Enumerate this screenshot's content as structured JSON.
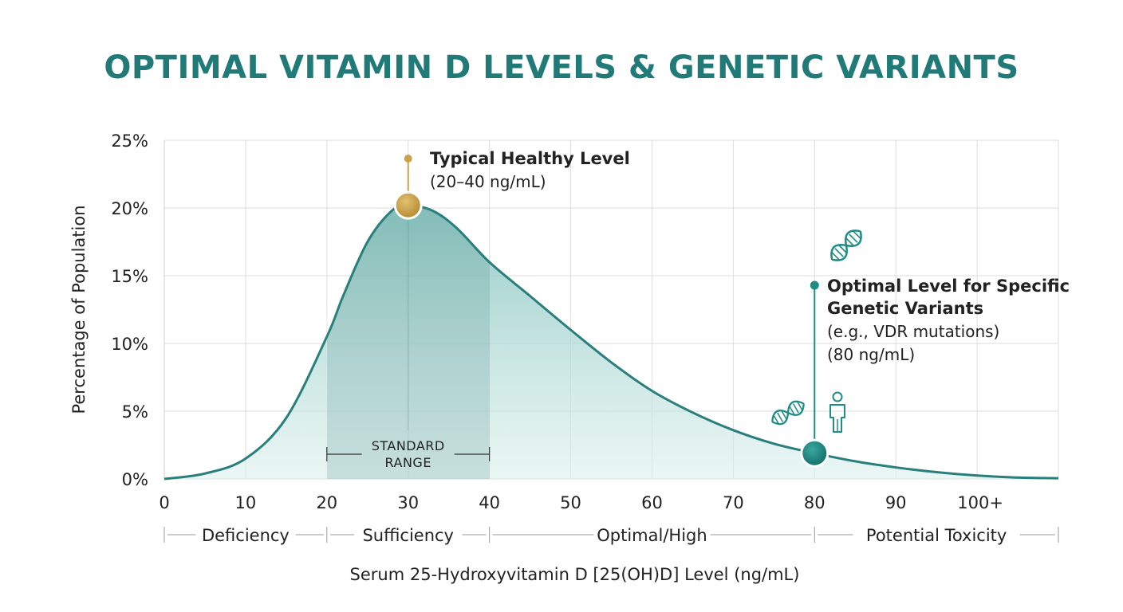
{
  "colors": {
    "title": "#1f7a78",
    "curve": "#2a7f7c",
    "fill": "#8fc9c4",
    "gold": "#c9a24a",
    "teal_marker": "#1f8c86",
    "grid": "#dddddd",
    "text": "#222222"
  },
  "chart_data": {
    "type": "area",
    "title": "OPTIMAL VITAMIN D LEVELS & GENETIC VARIANTS",
    "xlabel": "Serum 25-Hydroxyvitamin D [25(OH)D] Level (ng/mL)",
    "ylabel": "Percentage of Population",
    "xlim": [
      0,
      110
    ],
    "ylim": [
      0,
      25
    ],
    "grid": true,
    "x_ticks": [
      0,
      10,
      20,
      30,
      40,
      50,
      60,
      70,
      80,
      90,
      100
    ],
    "x_tick_labels": [
      "0",
      "10",
      "20",
      "30",
      "40",
      "50",
      "60",
      "70",
      "80",
      "90",
      "100+"
    ],
    "y_ticks": [
      0,
      5,
      10,
      15,
      20,
      25
    ],
    "y_tick_labels": [
      "0%",
      "5%",
      "10%",
      "15%",
      "20%",
      "25%"
    ],
    "series": [
      {
        "x": [
          0,
          5,
          10,
          15,
          20,
          22,
          25,
          28,
          30,
          33,
          36,
          40,
          45,
          50,
          55,
          60,
          65,
          70,
          75,
          80,
          85,
          90,
          95,
          100,
          105,
          110
        ],
        "y": [
          0,
          0.4,
          1.5,
          4.5,
          10.5,
          13.5,
          17.5,
          19.8,
          20.2,
          19.8,
          18.5,
          16.0,
          13.5,
          11.0,
          8.6,
          6.5,
          4.9,
          3.6,
          2.6,
          1.9,
          1.3,
          0.85,
          0.5,
          0.25,
          0.1,
          0.05
        ]
      }
    ],
    "shaded_range": {
      "from": 20,
      "to": 40,
      "label_line1": "STANDARD",
      "label_line2": "RANGE"
    },
    "annotations": [
      {
        "id": "typical",
        "x": 30,
        "y": 20.2,
        "title": "Typical Healthy Level",
        "detail": "(20–40 ng/mL)"
      },
      {
        "id": "optimal",
        "x": 80,
        "y": 1.9,
        "title_line1": "Optimal Level for Specific",
        "title_line2": "Genetic Variants",
        "detail_line1": "(e.g., VDR mutations)",
        "detail_line2": "(80 ng/mL)"
      }
    ],
    "zones": [
      {
        "label": "Deficiency",
        "from": 0,
        "to": 20
      },
      {
        "label": "Sufficiency",
        "from": 20,
        "to": 40
      },
      {
        "label": "Optimal/High",
        "from": 40,
        "to": 80
      },
      {
        "label": "Potential Toxicity",
        "from": 80,
        "to": 110
      }
    ],
    "icons": [
      "dna-icon",
      "dna-icon",
      "person-icon"
    ]
  }
}
